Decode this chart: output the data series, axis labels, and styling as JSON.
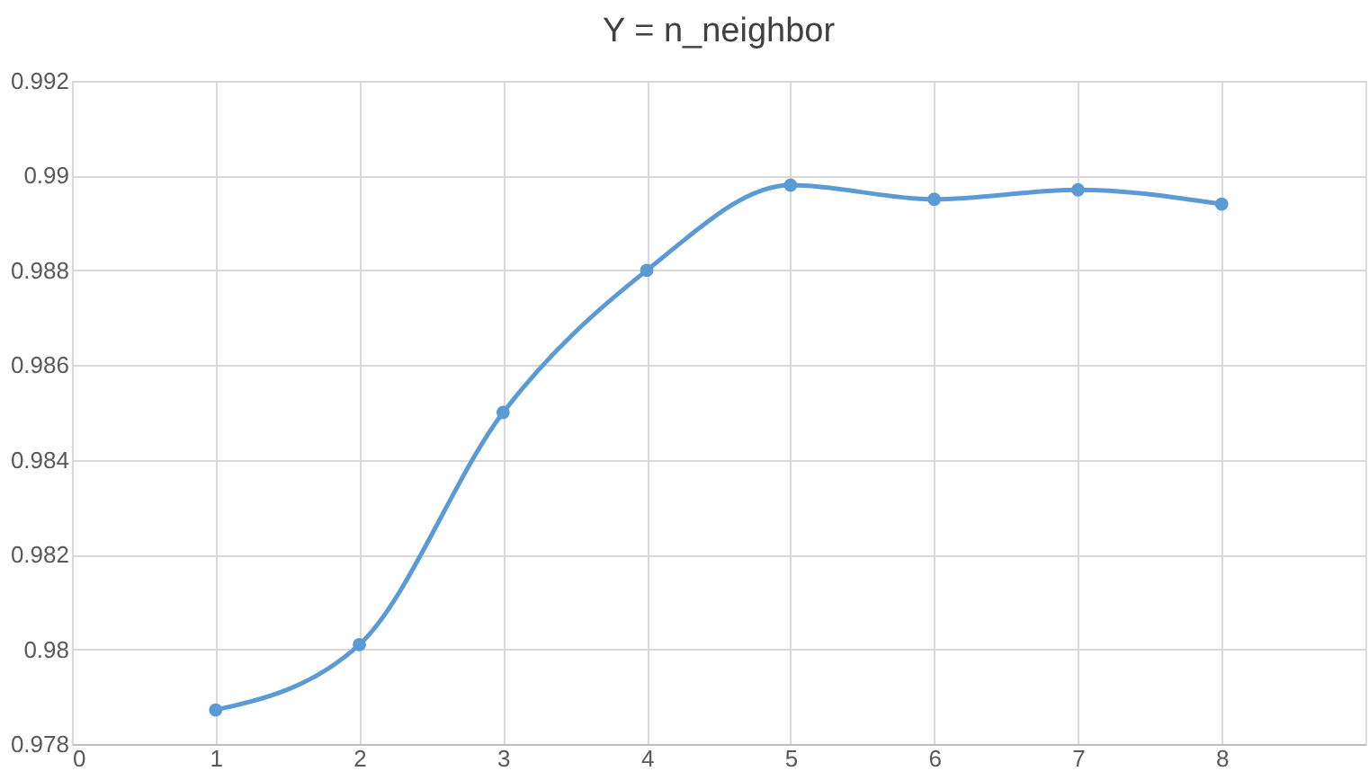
{
  "chart_data": {
    "type": "line",
    "title": "Y = n_neighbor",
    "x": [
      1,
      2,
      3,
      4,
      5,
      6,
      7,
      8
    ],
    "series": [
      {
        "color": "#5b9bd5",
        "values": [
          0.97872,
          0.9801,
          0.985,
          0.988,
          0.9898,
          0.9895,
          0.9897,
          0.9894
        ]
      }
    ],
    "xlim": [
      0,
      9
    ],
    "xticks": [
      0,
      1,
      2,
      3,
      4,
      5,
      6,
      7,
      8
    ],
    "ylim": [
      0.978,
      0.992
    ],
    "yticks": [
      0.978,
      0.98,
      0.982,
      0.984,
      0.986,
      0.988,
      0.99,
      0.992
    ],
    "grid": true,
    "marker": "circle",
    "line_style": "solid"
  }
}
